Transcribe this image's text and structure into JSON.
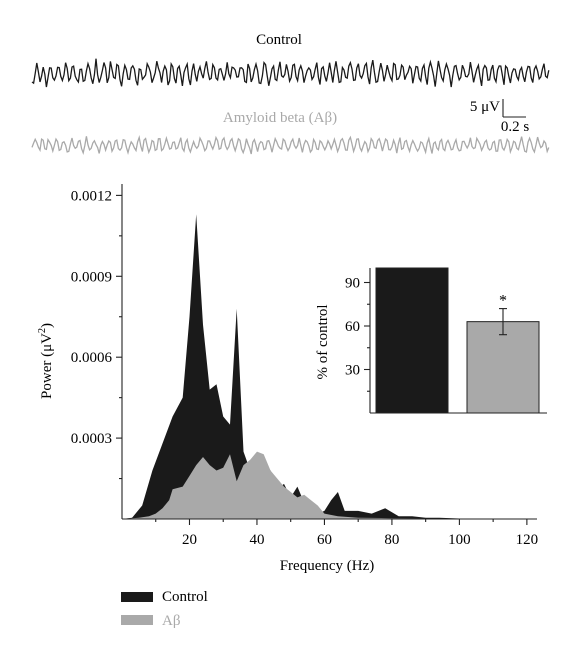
{
  "colors": {
    "control": "#1a1a1a",
    "abeta": "#a9a9a9",
    "axis": "#222222"
  },
  "chart_data": [
    {
      "type": "line",
      "panel": "eeg-traces",
      "series": [
        {
          "name": "Control",
          "label": "Control"
        },
        {
          "name": "Amyloid beta (Aβ)",
          "label": "Amyloid beta (Aβ)"
        }
      ],
      "scale_bar": {
        "amplitude_label": "5 μV",
        "time_label": "0.2 s"
      }
    },
    {
      "type": "area",
      "panel": "power-spectrum",
      "xlabel": "Frequency (Hz)",
      "ylabel_main": "Power (μV",
      "ylabel_sup": "2",
      "ylabel_close": ")",
      "xlim": [
        0,
        123
      ],
      "ylim": [
        0,
        0.00122
      ],
      "xticks": [
        20,
        40,
        60,
        80,
        100,
        120
      ],
      "xtick_labels": [
        "20",
        "40",
        "60",
        "80",
        "100",
        "120"
      ],
      "yticks": [
        0.0003,
        0.0006,
        0.0009,
        0.0012
      ],
      "ytick_labels": [
        "0.0003",
        "0.0006",
        "0.0009",
        "0.0012"
      ],
      "legend": [
        {
          "name": "Control",
          "label": "Control"
        },
        {
          "name": "Aβ",
          "label": "Aβ"
        }
      ],
      "legend_position": "bottom-left",
      "series": [
        {
          "name": "Control",
          "x": [
            0,
            3,
            6,
            9,
            12,
            15,
            18,
            20,
            22,
            24,
            26,
            28,
            30,
            32,
            34,
            36,
            38,
            40,
            42,
            44,
            46,
            48,
            50,
            52,
            54,
            56,
            58,
            60,
            62,
            64,
            66,
            70,
            74,
            78,
            82,
            86,
            90,
            94,
            100,
            110,
            120
          ],
          "y": [
            0,
            5e-06,
            5e-05,
            0.00018,
            0.00028,
            0.00038,
            0.00045,
            0.00075,
            0.00113,
            0.00072,
            0.00048,
            0.0005,
            0.00038,
            0.00035,
            0.00078,
            0.00025,
            0.00018,
            0.00024,
            0.00021,
            0.00018,
            0.00011,
            0.00013,
            8e-05,
            0.00012,
            6e-05,
            3e-05,
            2e-05,
            3e-05,
            7e-05,
            0.0001,
            3e-05,
            3e-05,
            2e-05,
            4e-05,
            1e-05,
            1e-05,
            5e-06,
            5e-06,
            2e-06,
            0,
            0
          ]
        },
        {
          "name": "Aβ",
          "x": [
            0,
            5,
            8,
            10,
            12,
            14,
            15,
            18,
            20,
            22,
            24,
            26,
            28,
            30,
            32,
            34,
            36,
            38,
            40,
            42,
            44,
            46,
            48,
            50,
            52,
            54,
            56,
            58,
            60,
            64,
            70,
            80,
            90,
            100,
            110,
            120
          ],
          "y": [
            0,
            5e-06,
            1e-05,
            2e-05,
            4e-05,
            7e-05,
            0.00011,
            0.00012,
            0.00016,
            0.0002,
            0.00023,
            0.0002,
            0.00018,
            0.00019,
            0.00024,
            0.00014,
            0.0002,
            0.00022,
            0.00025,
            0.00024,
            0.00018,
            0.00015,
            0.00012,
            0.0001,
            8e-05,
            9e-05,
            7e-05,
            5e-05,
            2e-05,
            1e-05,
            5e-06,
            3e-06,
            2e-06,
            0,
            0,
            0
          ]
        }
      ]
    },
    {
      "type": "bar",
      "panel": "inset",
      "ylabel": "% of control",
      "ylim": [
        0,
        100
      ],
      "yticks": [
        30,
        60,
        90
      ],
      "ytick_labels": [
        "30",
        "60",
        "90"
      ],
      "categories": [
        "Control",
        "Aβ"
      ],
      "values": [
        100,
        63
      ],
      "error": [
        0,
        9
      ],
      "significance": "*"
    }
  ]
}
